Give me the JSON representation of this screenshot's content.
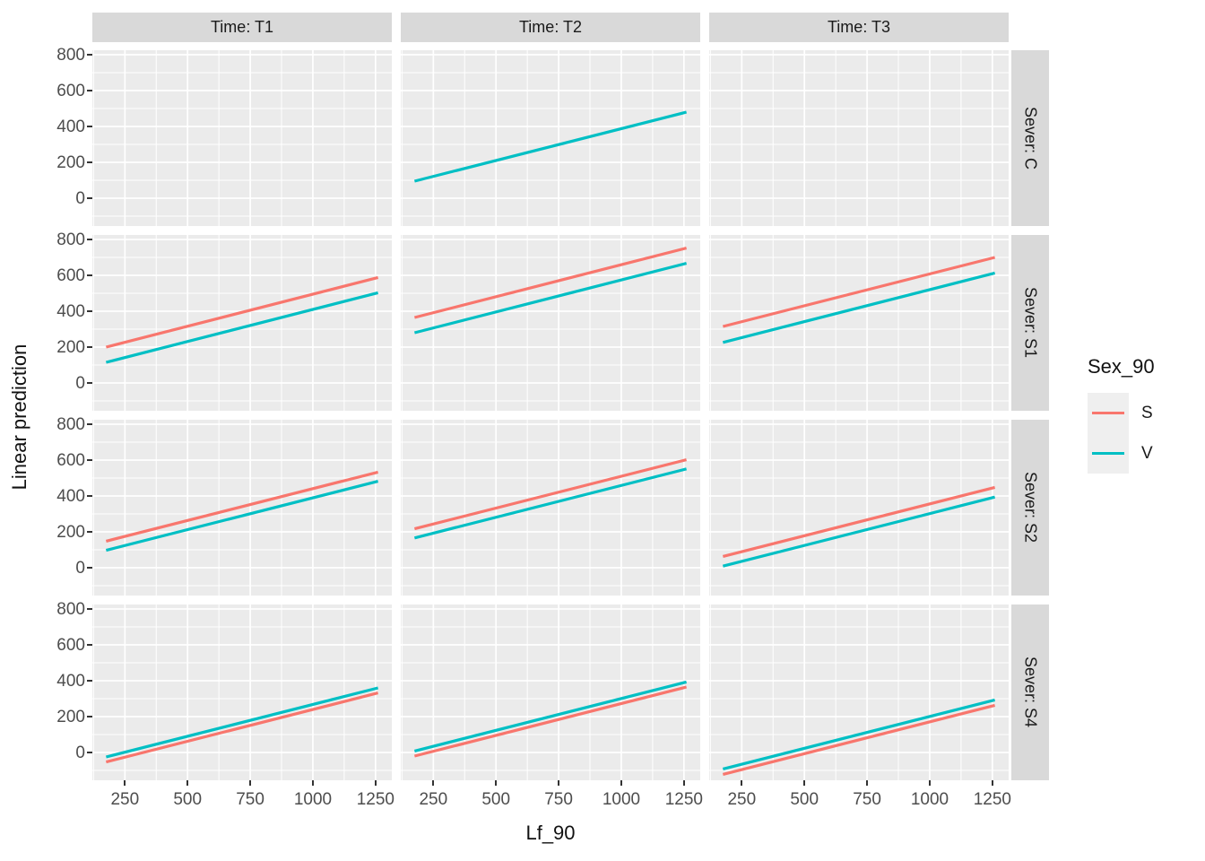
{
  "titles": {
    "y_axis": "Linear prediction",
    "x_axis": "Lf_90"
  },
  "legend": {
    "title": "Sex_90",
    "entries": [
      {
        "label": "S",
        "color": "#F8766D"
      },
      {
        "label": "V",
        "color": "#00BFC4"
      }
    ]
  },
  "colors": {
    "series_S": "#F8766D",
    "series_V": "#00BFC4",
    "panel_bg": "#EBEBEB",
    "strip_bg": "#D9D9D9",
    "grid": "#FFFFFF",
    "tick_text": "#4D4D4D",
    "text": "#1A1A1A",
    "legend_key_bg": "#EFEFEF"
  },
  "chart_data": {
    "type": "line",
    "title": "",
    "xlabel": "Lf_90",
    "ylabel": "Linear prediction",
    "facet_col_labels": [
      "Time: T1",
      "Time: T2",
      "Time: T3"
    ],
    "facet_row_labels": [
      "Sever: C",
      "Sever: S1",
      "Sever: S2",
      "Sever: S4"
    ],
    "legend_title": "Sex_90",
    "x": {
      "range": [
        120,
        1315
      ],
      "ticks": [
        250,
        500,
        750,
        1000,
        1250
      ],
      "minor_ticks": [
        125,
        375,
        625,
        875,
        1125
      ],
      "data_span": [
        175,
        1260
      ]
    },
    "y": {
      "range": [
        -155,
        825
      ],
      "ticks": [
        0,
        200,
        400,
        600,
        800
      ],
      "minor_ticks": [
        -100,
        100,
        300,
        500,
        700
      ]
    },
    "grid": "on",
    "legend_position": "right",
    "panels": [
      {
        "row": "Sever: C",
        "col": "Time: T1",
        "lines": []
      },
      {
        "row": "Sever: C",
        "col": "Time: T2",
        "lines": [
          {
            "series": "V",
            "y_start": 95,
            "y_end": 480
          }
        ]
      },
      {
        "row": "Sever: C",
        "col": "Time: T3",
        "lines": []
      },
      {
        "row": "Sever: S1",
        "col": "Time: T1",
        "lines": [
          {
            "series": "S",
            "y_start": 200,
            "y_end": 588
          },
          {
            "series": "V",
            "y_start": 115,
            "y_end": 503
          }
        ]
      },
      {
        "row": "Sever: S1",
        "col": "Time: T2",
        "lines": [
          {
            "series": "S",
            "y_start": 365,
            "y_end": 752
          },
          {
            "series": "V",
            "y_start": 280,
            "y_end": 667
          }
        ]
      },
      {
        "row": "Sever: S1",
        "col": "Time: T3",
        "lines": [
          {
            "series": "S",
            "y_start": 315,
            "y_end": 700
          },
          {
            "series": "V",
            "y_start": 226,
            "y_end": 613
          }
        ]
      },
      {
        "row": "Sever: S2",
        "col": "Time: T1",
        "lines": [
          {
            "series": "S",
            "y_start": 148,
            "y_end": 533
          },
          {
            "series": "V",
            "y_start": 97,
            "y_end": 482
          }
        ]
      },
      {
        "row": "Sever: S2",
        "col": "Time: T2",
        "lines": [
          {
            "series": "S",
            "y_start": 217,
            "y_end": 602
          },
          {
            "series": "V",
            "y_start": 166,
            "y_end": 551
          }
        ]
      },
      {
        "row": "Sever: S2",
        "col": "Time: T3",
        "lines": [
          {
            "series": "S",
            "y_start": 63,
            "y_end": 448
          },
          {
            "series": "V",
            "y_start": 9,
            "y_end": 394
          }
        ]
      },
      {
        "row": "Sever: S4",
        "col": "Time: T1",
        "lines": [
          {
            "series": "S",
            "y_start": -53,
            "y_end": 332
          },
          {
            "series": "V",
            "y_start": -25,
            "y_end": 360
          }
        ]
      },
      {
        "row": "Sever: S4",
        "col": "Time: T2",
        "lines": [
          {
            "series": "S",
            "y_start": -20,
            "y_end": 365
          },
          {
            "series": "V",
            "y_start": 8,
            "y_end": 393
          }
        ]
      },
      {
        "row": "Sever: S4",
        "col": "Time: T3",
        "lines": [
          {
            "series": "S",
            "y_start": -122,
            "y_end": 263
          },
          {
            "series": "V",
            "y_start": -92,
            "y_end": 293
          }
        ]
      }
    ]
  }
}
